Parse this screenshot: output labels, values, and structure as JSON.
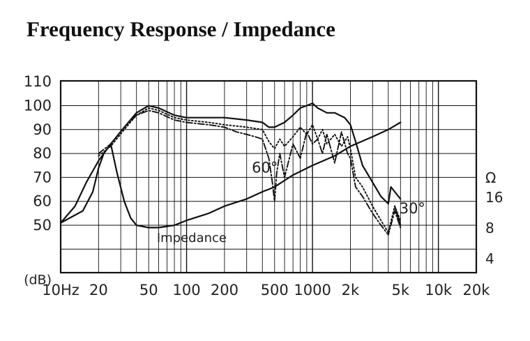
{
  "title": "Frequency Response / Impedance",
  "chart_data": {
    "type": "line",
    "title": "Frequency Response / Impedance",
    "x_scale": "log",
    "xlim": [
      10,
      20000
    ],
    "x_ticks": [
      {
        "v": 10,
        "label": "10Hz"
      },
      {
        "v": 20,
        "label": "20"
      },
      {
        "v": 50,
        "label": "50"
      },
      {
        "v": 100,
        "label": "100"
      },
      {
        "v": 200,
        "label": "200"
      },
      {
        "v": 500,
        "label": "500"
      },
      {
        "v": 1000,
        "label": "1000"
      },
      {
        "v": 2000,
        "label": "2k"
      },
      {
        "v": 5000,
        "label": "5k"
      },
      {
        "v": 10000,
        "label": "10k"
      },
      {
        "v": 20000,
        "label": "20k"
      }
    ],
    "ylim": [
      30,
      110
    ],
    "y_ticks": [
      {
        "v": 110,
        "label": "110"
      },
      {
        "v": 100,
        "label": "100"
      },
      {
        "v": 90,
        "label": "90"
      },
      {
        "v": 80,
        "label": "80"
      },
      {
        "v": 70,
        "label": "70"
      },
      {
        "v": 60,
        "label": "60"
      },
      {
        "v": 50,
        "label": "50"
      }
    ],
    "y_unit_label": "(dB)",
    "right_axis": {
      "unit": "Ω",
      "scale": "log",
      "ticks": [
        {
          "v": 16,
          "label": "16"
        },
        {
          "v": 8,
          "label": "8"
        },
        {
          "v": 4,
          "label": "4"
        }
      ]
    },
    "grid": true,
    "series": [
      {
        "style": "solid",
        "x": [
          10,
          13,
          16,
          20,
          25,
          32,
          40,
          50,
          60,
          80,
          100,
          150,
          200,
          300,
          400,
          450,
          500,
          600,
          700,
          800,
          900,
          1000,
          1100,
          1300,
          1500,
          1800,
          2000,
          2200,
          2500,
          3000,
          3500,
          4000,
          4200,
          4500,
          5000
        ],
        "y": [
          51,
          58,
          68,
          77,
          84,
          91,
          97,
          100,
          99,
          96,
          95,
          95,
          95,
          94,
          93,
          91,
          91,
          93,
          96,
          99,
          100,
          101,
          99,
          97,
          97,
          95,
          92,
          85,
          75,
          68,
          62,
          59,
          66,
          64,
          61
        ]
      },
      {
        "style": "dotted",
        "x": [
          20,
          25,
          32,
          40,
          50,
          60,
          80,
          100,
          150,
          200,
          300,
          400,
          450,
          500,
          550,
          600,
          700,
          800,
          900,
          1000,
          1100,
          1200,
          1300,
          1500,
          1700,
          1900,
          2000,
          2200,
          2500,
          3000,
          3500,
          4000,
          4500,
          5000
        ],
        "y": [
          79,
          83,
          90,
          96,
          99,
          98,
          95,
          94,
          93,
          92,
          91,
          90,
          85,
          82,
          86,
          83,
          87,
          91,
          88,
          92,
          86,
          90,
          84,
          88,
          83,
          87,
          82,
          70,
          66,
          58,
          52,
          47,
          58,
          52
        ]
      },
      {
        "name": "60°",
        "style": "dash-dot",
        "x": [
          20,
          25,
          32,
          40,
          50,
          60,
          80,
          100,
          150,
          200,
          250,
          300,
          350,
          400,
          450,
          480,
          500,
          520,
          550,
          600,
          700,
          800,
          900,
          1000,
          1100,
          1200,
          1300,
          1500,
          1700,
          1900,
          2000,
          2200,
          2500,
          3000,
          3500,
          4000,
          4500,
          5000
        ],
        "y": [
          80,
          84,
          91,
          96,
          98,
          97,
          94,
          93,
          92,
          91,
          89,
          88,
          87,
          86,
          78,
          68,
          60,
          72,
          80,
          70,
          84,
          78,
          89,
          84,
          86,
          80,
          88,
          76,
          89,
          80,
          78,
          66,
          62,
          55,
          50,
          46,
          56,
          49
        ]
      },
      {
        "name": "30°",
        "style": "solid",
        "x": [
          4500,
          5000
        ],
        "y": [
          58,
          50
        ]
      },
      {
        "name": "Impedance",
        "style": "solid",
        "x": [
          10,
          15,
          18,
          20,
          22,
          25,
          28,
          32,
          36,
          40,
          50,
          60,
          80,
          100,
          150,
          200,
          300,
          400,
          500,
          700,
          1000,
          1500,
          2000,
          3000,
          4000,
          5000
        ],
        "y": [
          51,
          56,
          64,
          74,
          80,
          84,
          72,
          60,
          53,
          50,
          49,
          49,
          50,
          52,
          55,
          58,
          61,
          64,
          66,
          71,
          75,
          79,
          83,
          87,
          90,
          93
        ]
      }
    ],
    "annotations": [
      {
        "text": "60°",
        "x": 330,
        "y": 72
      },
      {
        "text": "30°",
        "x": 4900,
        "y": 55
      },
      {
        "text": "Impedance",
        "x": 58,
        "y": 43
      }
    ]
  }
}
